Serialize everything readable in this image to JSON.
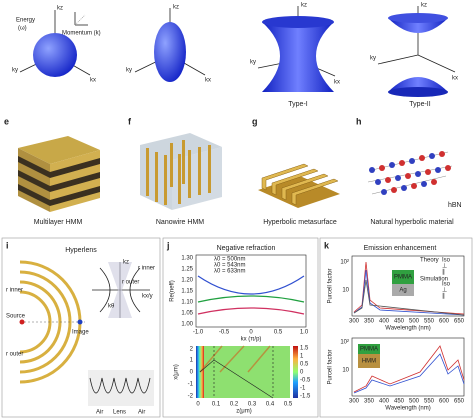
{
  "top_row": [
    {
      "axis_labels": [
        "kz",
        "Energy",
        "(ω)",
        "Momentum (k)",
        "ky",
        "kx"
      ]
    },
    {
      "axis_labels": [
        "kz",
        "ky",
        "kx"
      ]
    },
    {
      "axis_labels": [
        "kz",
        "ky",
        "kx"
      ],
      "caption": "Type-I"
    },
    {
      "axis_labels": [
        "kz",
        "ky",
        "kx"
      ],
      "caption": "Type-II"
    }
  ],
  "middle_row": [
    {
      "letter": "e",
      "caption": "Multilayer HMM"
    },
    {
      "letter": "f",
      "caption": "Nanowire HMM"
    },
    {
      "letter": "g",
      "caption": "Hyperbolic metasurface"
    },
    {
      "letter": "h",
      "label": "hBN",
      "caption": "Natural hyperbolic material"
    }
  ],
  "panel_i": {
    "letter": "i",
    "title": "Hyperlens",
    "labels": [
      "kz",
      "r inner",
      "r outer",
      "kx/y",
      "kθ",
      "r inner",
      "Source",
      "Image",
      "r outer",
      "Air",
      "Lens",
      "Air"
    ]
  },
  "panel_j": {
    "letter": "j",
    "title": "Negative refraction",
    "legend": [
      "λ0 = 500nm",
      "λ0 = 543nm",
      "λ0 = 633nm"
    ],
    "top_ylabel": "Re(neff)",
    "top_yticks": [
      "1.30",
      "1.25",
      "1.20",
      "1.15",
      "1.10",
      "1.05",
      "1.00"
    ],
    "top_xticks": [
      "-1.0",
      "-0.5",
      "0",
      "0.5",
      "1.0"
    ],
    "top_xlabel": "kx (π/p)",
    "bottom_ylabel": "x(μm)",
    "bottom_yticks": [
      "2",
      "1",
      "0",
      "-1",
      "-2"
    ],
    "bottom_xticks": [
      "0",
      "0.1",
      "0.2",
      "0.3",
      "0.4",
      "0.5"
    ],
    "bottom_xlabel": "z(μm)",
    "colorbar_ticks": [
      "1.5",
      "1",
      "0.5",
      "0",
      "-0.5",
      "-1",
      "-1.5"
    ]
  },
  "panel_k": {
    "letter": "k",
    "title": "Emission enhancement",
    "top_ylabel": "Purcell factor",
    "top_yticks": [
      "10²",
      "10"
    ],
    "legend": [
      "Theory",
      "Iso",
      "⊥",
      "∥",
      "Simulation",
      "Iso",
      "⊥",
      "∥"
    ],
    "top_inset": [
      "PMMA",
      "Ag"
    ],
    "xticks": [
      "300",
      "350",
      "400",
      "450",
      "500",
      "550",
      "600",
      "650"
    ],
    "xlabel": "Wavelength (nm)",
    "bottom_ylabel": "Purcell factor",
    "bottom_yticks": [
      "10²",
      "10"
    ],
    "bottom_inset": [
      "PMMA",
      "HMM"
    ]
  }
}
